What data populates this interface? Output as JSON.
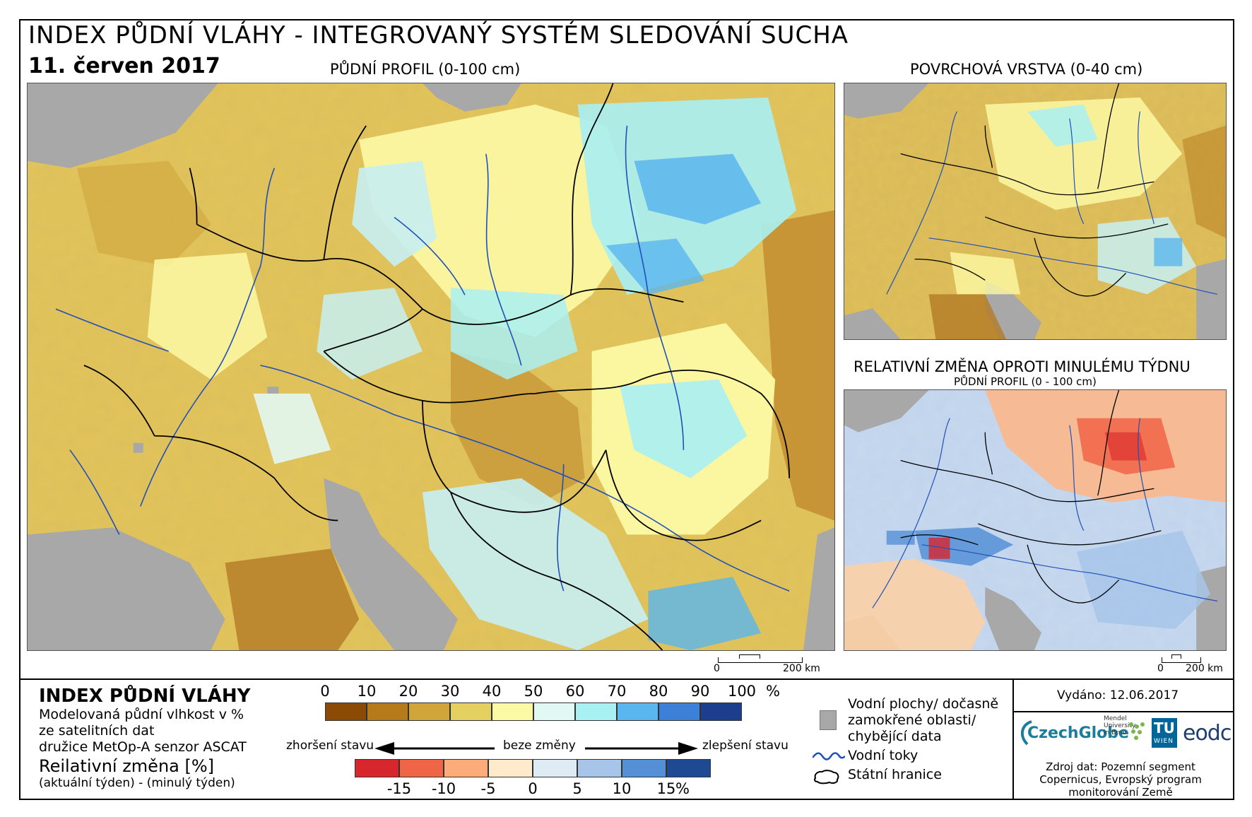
{
  "header": {
    "title": "INDEX PŮDNÍ VLÁHY - INTEGROVANÝ SYSTÉM SLEDOVÁNÍ SUCHA",
    "date": "11. červen 2017"
  },
  "maps": {
    "main_label": "PŮDNÍ PROFIL (0-100 cm)",
    "surface_label": "POVRCHOVÁ VRSTVA (0-40 cm)",
    "change_label": "RELATIVNÍ ZMĚNA OPROTI MINULÉMU TÝDNU",
    "change_sublabel": "PŮDNÍ PROFIL (0 - 100 cm)"
  },
  "scalebar": {
    "zero": "0",
    "distance": "200 km"
  },
  "legend": {
    "title": "INDEX PŮDNÍ VLÁHY",
    "desc_line1": "Modelovaná půdní vlhkost v %",
    "desc_line2": "ze satelitních dat",
    "desc_line3": "družice MetOp-A senzor ASCAT",
    "change_title": "Reilativní změna [%]",
    "change_desc": "(aktuální týden) - (minulý týden)",
    "index_ticks": [
      "0",
      "10",
      "20",
      "30",
      "40",
      "50",
      "60",
      "70",
      "80",
      "90",
      "100"
    ],
    "index_unit": "%",
    "index_colors": [
      "#8b4a06",
      "#b57a1a",
      "#d0a63b",
      "#e4cf61",
      "#fcf9a4",
      "#e2f8f3",
      "#a9f0f3",
      "#5ab6ef",
      "#3d80d8",
      "#1d3e8c"
    ],
    "worse": "zhoršení stavu",
    "nochange": "beze změny",
    "better": "zlepšení stavu",
    "change_ticks": [
      "-15",
      "-10",
      "-5",
      "0",
      "5",
      "10",
      "15"
    ],
    "change_unit": "%",
    "change_colors": [
      "#d7262c",
      "#f06447",
      "#fcac7b",
      "#ffeacc",
      "#deebf5",
      "#a7c5e9",
      "#5590d6",
      "#1e4a93"
    ],
    "water_label_1": "Vodní plochy/ dočasně",
    "water_label_2": "zamokřené oblasti/",
    "water_label_3": "chybějící data",
    "rivers_label": "Vodní toky",
    "borders_label": "Státní hranice",
    "water_color": "#a8a8a8",
    "river_color": "#2050b8"
  },
  "info": {
    "issued": "Vydáno: 12.06.2017",
    "source_1": "Zdroj dat: Pozemní segment",
    "source_2": "Copernicus, Evropský program",
    "source_3": "monitorování Země",
    "logo_czechglobe": "CzechGlobe",
    "logo_mendel_1": "Mendel",
    "logo_mendel_2": "University",
    "logo_mendel_3": "in Brno",
    "logo_tu": "TU",
    "logo_wien": "WIEN",
    "logo_eodc": "eodc"
  }
}
